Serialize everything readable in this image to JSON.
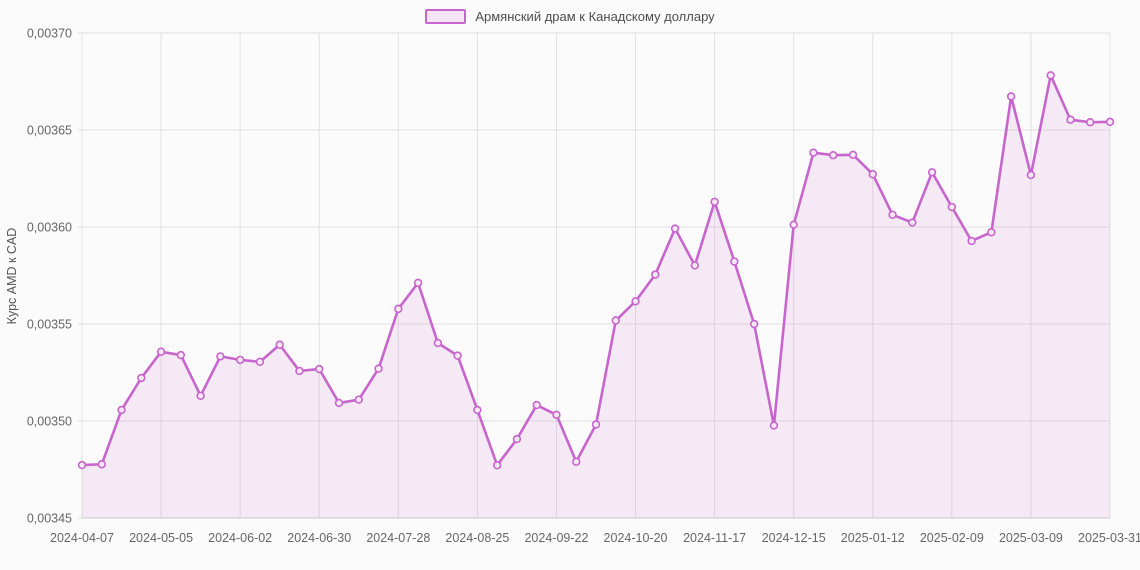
{
  "chart_data": {
    "type": "area",
    "legend_label": "Армянский драм к Канадскому доллару",
    "ylabel": "Курс AMD к CAD",
    "grid": true,
    "legend_position": "top-center",
    "ylim": [
      0.00345,
      0.0037
    ],
    "y_ticks": [
      {
        "value": 0.0037,
        "label": "0,00370"
      },
      {
        "value": 0.00365,
        "label": "0,00365"
      },
      {
        "value": 0.0036,
        "label": "0,00360"
      },
      {
        "value": 0.00355,
        "label": "0,00355"
      },
      {
        "value": 0.0035,
        "label": "0,00350"
      },
      {
        "value": 0.00345,
        "label": "0,00345"
      }
    ],
    "x": [
      "2024-04-07",
      "2024-04-14",
      "2024-04-21",
      "2024-04-28",
      "2024-05-05",
      "2024-05-12",
      "2024-05-19",
      "2024-05-26",
      "2024-06-02",
      "2024-06-09",
      "2024-06-16",
      "2024-06-23",
      "2024-06-30",
      "2024-07-07",
      "2024-07-14",
      "2024-07-21",
      "2024-07-28",
      "2024-08-04",
      "2024-08-11",
      "2024-08-18",
      "2024-08-25",
      "2024-09-01",
      "2024-09-08",
      "2024-09-15",
      "2024-09-22",
      "2024-09-29",
      "2024-10-06",
      "2024-10-13",
      "2024-10-20",
      "2024-10-27",
      "2024-11-03",
      "2024-11-10",
      "2024-11-17",
      "2024-11-24",
      "2024-12-01",
      "2024-12-08",
      "2024-12-15",
      "2024-12-22",
      "2024-12-29",
      "2025-01-05",
      "2025-01-12",
      "2025-01-19",
      "2025-01-26",
      "2025-02-02",
      "2025-02-09",
      "2025-02-16",
      "2025-02-23",
      "2025-03-02",
      "2025-03-09",
      "2025-03-16",
      "2025-03-23",
      "2025-03-30",
      "2025-03-31"
    ],
    "values": [
      0.0034773,
      0.0034777,
      0.0035057,
      0.0035222,
      0.0035357,
      0.003534,
      0.003513,
      0.0035333,
      0.0035315,
      0.0035305,
      0.0035393,
      0.0035258,
      0.0035268,
      0.0035093,
      0.003511,
      0.003527,
      0.0035578,
      0.0035712,
      0.0035402,
      0.0035337,
      0.0035057,
      0.0034772,
      0.0034907,
      0.0035082,
      0.0035032,
      0.003479,
      0.0034982,
      0.0035518,
      0.0035617,
      0.0035755,
      0.0035992,
      0.0035802,
      0.003613,
      0.0035822,
      0.00355,
      0.0034977,
      0.0036012,
      0.0036383,
      0.003637,
      0.0036372,
      0.0036272,
      0.0036063,
      0.0036023,
      0.0036282,
      0.0036103,
      0.0035928,
      0.0035973,
      0.0036673,
      0.0036268,
      0.0036782,
      0.0036553,
      0.003654,
      0.0036542
    ],
    "x_ticks": [
      {
        "index": 0,
        "label": "2024-04-07"
      },
      {
        "index": 4,
        "label": "2024-05-05"
      },
      {
        "index": 8,
        "label": "2024-06-02"
      },
      {
        "index": 12,
        "label": "2024-06-30"
      },
      {
        "index": 16,
        "label": "2024-07-28"
      },
      {
        "index": 20,
        "label": "2024-08-25"
      },
      {
        "index": 24,
        "label": "2024-09-22"
      },
      {
        "index": 28,
        "label": "2024-10-20"
      },
      {
        "index": 32,
        "label": "2024-11-17"
      },
      {
        "index": 36,
        "label": "2024-12-15"
      },
      {
        "index": 40,
        "label": "2025-01-12"
      },
      {
        "index": 44,
        "label": "2025-02-09"
      },
      {
        "index": 48,
        "label": "2025-03-09"
      },
      {
        "index": 52,
        "label": "2025-03-31"
      }
    ],
    "colors": {
      "line": "#c765cd",
      "area_fill": "rgba(201,105,206,0.12)",
      "marker_fill": "#f6e8f6",
      "grid": "#e0e0e0",
      "axis_line": "#cccccc",
      "tick_text": "#666666",
      "legend_text": "#4d4d4d",
      "background": "#fbfbfb"
    }
  }
}
